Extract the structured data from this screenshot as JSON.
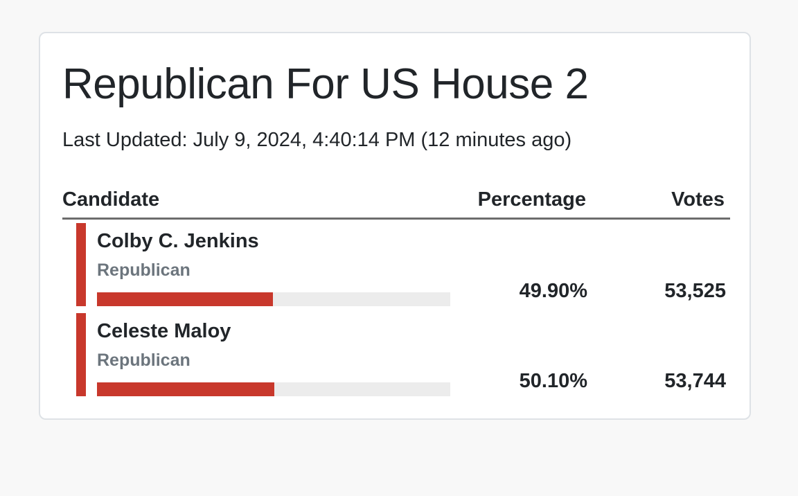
{
  "race": {
    "title": "Republican For US House 2",
    "last_updated": "Last Updated: July 9, 2024, 4:40:14 PM (12 minutes ago)"
  },
  "table": {
    "headers": {
      "candidate": "Candidate",
      "percentage": "Percentage",
      "votes": "Votes"
    },
    "rows": [
      {
        "name": "Colby C. Jenkins",
        "party": "Republican",
        "percentage": "49.90%",
        "votes": "53,525",
        "share": 0.499
      },
      {
        "name": "Celeste Maloy",
        "party": "Republican",
        "percentage": "50.10%",
        "votes": "53,744",
        "share": 0.501
      }
    ]
  },
  "colors": {
    "party_republican": "#c8382c",
    "bar_track": "#ececec",
    "text_primary": "#212529",
    "text_muted": "#6c757d"
  }
}
